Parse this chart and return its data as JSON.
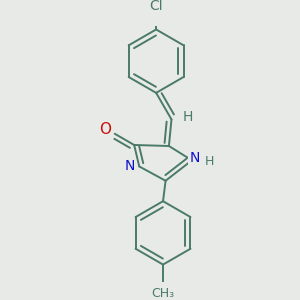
{
  "background_color": "#e8eae8",
  "bond_color": "#4a7a6a",
  "bond_width": 1.4,
  "atom_colors": {
    "C": "#4a7a6a",
    "N": "#1010cc",
    "O": "#cc1010",
    "Cl": "#4a7a6a",
    "H": "#4a7a6a"
  },
  "font_size": 10,
  "fig_size": [
    3.0,
    3.0
  ],
  "dpi": 100,
  "xlim": [
    -1.8,
    1.8
  ],
  "ylim": [
    -2.6,
    2.4
  ]
}
